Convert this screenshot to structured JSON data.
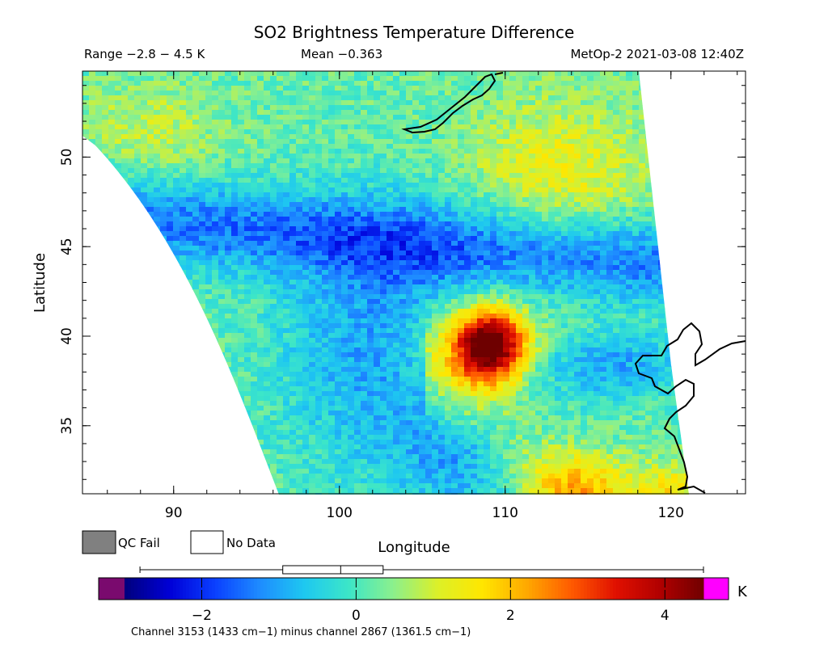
{
  "header": {
    "title": "SO2 Brightness Temperature Difference",
    "range": "Range −2.8 − 4.5 K",
    "mean": "Mean −0.363",
    "satellite_time": "MetOp-2 2021-03-08 12:40Z"
  },
  "axes": {
    "xlabel": "Longitude",
    "ylabel": "Latitude",
    "xlim": [
      84.5,
      124.5
    ],
    "ylim": [
      31.2,
      54.8
    ],
    "xticks": [
      90,
      100,
      110,
      120
    ],
    "xtick_labels": [
      "90",
      "100",
      "110",
      "120"
    ],
    "yticks": [
      35,
      40,
      45,
      50
    ],
    "ytick_labels": [
      "35",
      "40",
      "45",
      "50"
    ]
  },
  "legend": {
    "qc_fail_label": "QC Fail",
    "no_data_label": "No Data",
    "qc_fail_color": "#808080",
    "no_data_color": "#ffffff"
  },
  "colorbar": {
    "unit": "K",
    "vmin": -3.0,
    "vmax": 4.5,
    "ticks": [
      -2,
      0,
      2,
      4
    ],
    "tick_labels": [
      "−2",
      "0",
      "2",
      "4"
    ],
    "under_color": "#7a0a6e",
    "over_color": "#ff00ff",
    "colors": [
      "#000080",
      "#0000d8",
      "#0a40ff",
      "#1e8cff",
      "#1ec8f0",
      "#3ce6c8",
      "#8cf08c",
      "#dcf028",
      "#ffe600",
      "#ffa800",
      "#ff5a00",
      "#e01000",
      "#b00000",
      "#6e0000"
    ],
    "boxplot": {
      "min": -2.8,
      "q1": -0.95,
      "median": -0.2,
      "q3": 0.35,
      "max": 4.5
    },
    "footnote": "Channel 3153 (1433 cm−1) minus channel 2867 (1361.5 cm−1)"
  },
  "chart_data": {
    "type": "heatmap",
    "title": "SO2 Brightness Temperature Difference",
    "xlabel": "Longitude",
    "ylabel": "Latitude",
    "xlim": [
      84.5,
      124.5
    ],
    "ylim": [
      31.2,
      54.8
    ],
    "value_range": [
      -2.8,
      4.5
    ],
    "mean": -0.363,
    "units": "K",
    "plume_peak": {
      "lon": 108.8,
      "lat": 40.3,
      "value": 4.3
    },
    "map_features": [
      "coastline"
    ]
  }
}
